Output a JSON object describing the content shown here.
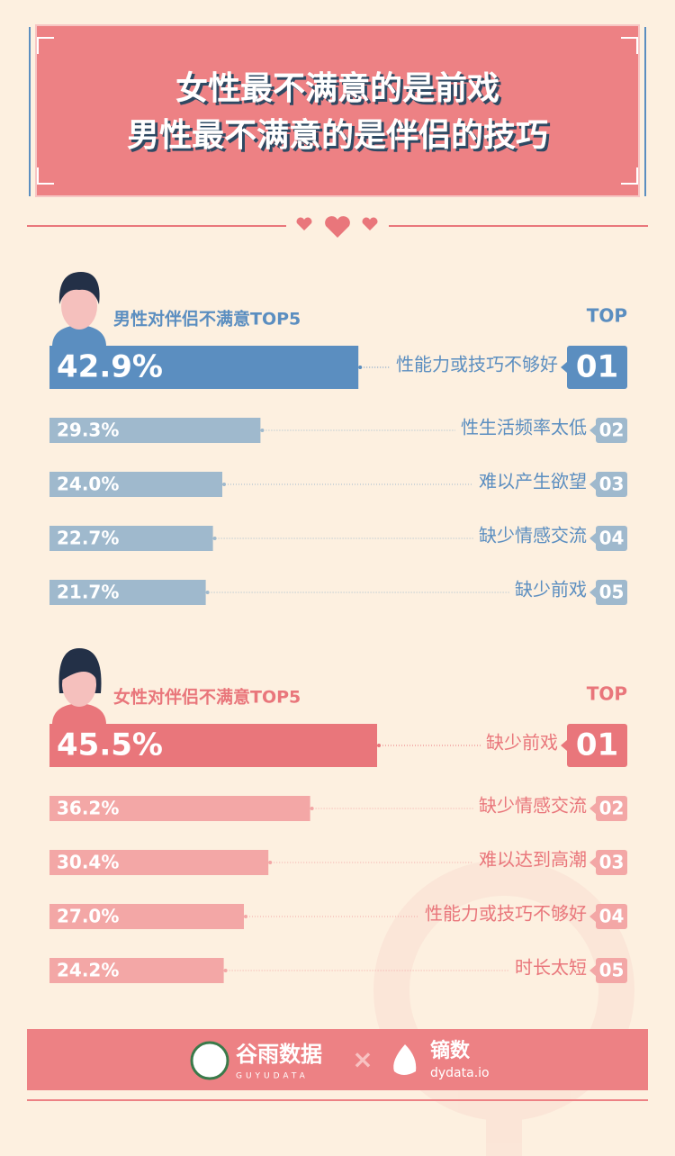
{
  "title": [
    "女性最不满意的是前戏",
    "男性最不满意的是伴侣的技巧"
  ],
  "chart_data": [
    {
      "type": "bar",
      "title": "男性对伴侣不满意TOP5",
      "rank_header": "TOP",
      "categories": [
        "性能力或技巧不够好",
        "性生活频率太低",
        "难以产生欲望",
        "缺少情感交流",
        "缺少前戏"
      ],
      "ranks": [
        "01",
        "02",
        "03",
        "04",
        "05"
      ],
      "values": [
        42.9,
        29.3,
        24.0,
        22.7,
        21.7
      ],
      "value_labels": [
        "42.9%",
        "29.3%",
        "24.0%",
        "22.7%",
        "21.7%"
      ],
      "top_color": "#5b8ec0",
      "color": "#9fb9cd",
      "xlim": [
        0,
        80
      ]
    },
    {
      "type": "bar",
      "title": "女性对伴侣不满意TOP5",
      "rank_header": "TOP",
      "categories": [
        "缺少前戏",
        "缺少情感交流",
        "难以达到高潮",
        "性能力或技巧不够好",
        "时长太短"
      ],
      "ranks": [
        "01",
        "02",
        "03",
        "04",
        "05"
      ],
      "values": [
        45.5,
        36.2,
        30.4,
        27.0,
        24.2
      ],
      "value_labels": [
        "45.5%",
        "36.2%",
        "30.4%",
        "27.0%",
        "24.2%"
      ],
      "top_color": "#e9767b",
      "color": "#f3a7a6",
      "xlim": [
        0,
        80
      ]
    }
  ],
  "footer": {
    "brand1": "谷雨数据",
    "brand1_sub": "GUYUDATA",
    "separator": "×",
    "brand2": "镝数",
    "brand2_sub": "dydata.io"
  }
}
